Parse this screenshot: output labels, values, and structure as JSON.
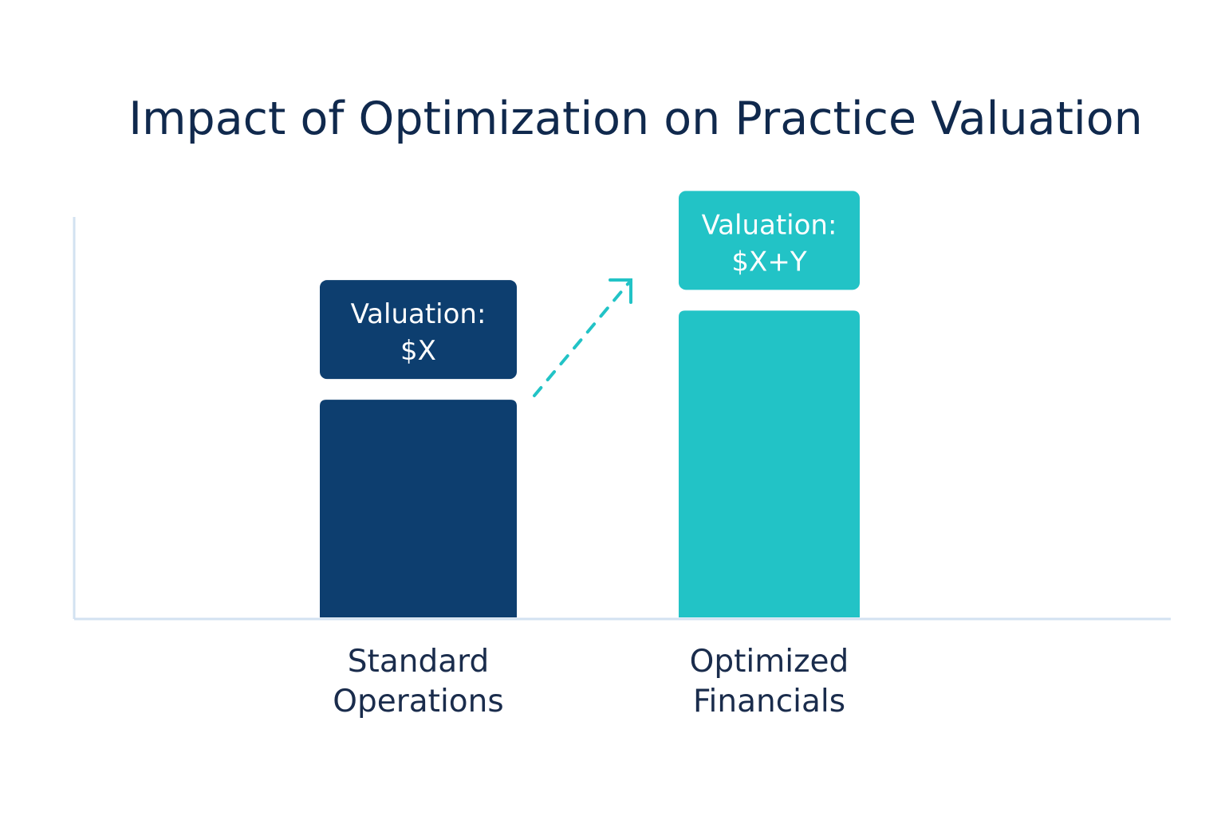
{
  "chart_data": {
    "type": "bar",
    "title": "Impact of Optimization on Practice Valuation",
    "xlabel": "",
    "ylabel": "",
    "categories": [
      "Standard Operations",
      "Optimized Financials"
    ],
    "category_lines": [
      [
        "Standard",
        "Operations"
      ],
      [
        "Optimized",
        "Financials"
      ]
    ],
    "values": [
      100,
      141
    ],
    "ylim": [
      0,
      184
    ],
    "data_labels": [
      [
        "Valuation:",
        "$X"
      ],
      [
        "Valuation:",
        "$X+Y"
      ]
    ],
    "grid": false,
    "annotations": [
      "dashed upward arrow from Standard Operations to Optimized Financials"
    ],
    "colors": [
      "#0d3e6f",
      "#22c3c6"
    ],
    "title_color": "#10294d",
    "axis_color": "#d3e2f1"
  }
}
